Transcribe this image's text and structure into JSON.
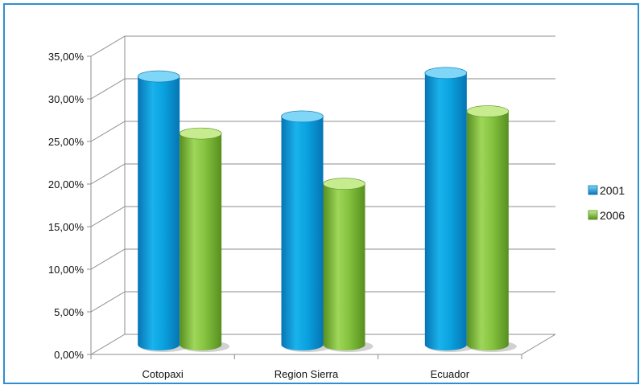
{
  "chart_data": {
    "type": "bar",
    "categories": [
      "Cotopaxi",
      "Region Sierra",
      "Ecuador"
    ],
    "series": [
      {
        "name": "2001",
        "values": [
          31.5,
          26.8,
          31.9
        ]
      },
      {
        "name": "2006",
        "values": [
          24.8,
          18.9,
          27.4
        ]
      }
    ],
    "yticks": [
      "0,00%",
      "5,00%",
      "10,00%",
      "15,00%",
      "20,00%",
      "25,00%",
      "30,00%",
      "35,00%"
    ],
    "ylim": [
      0,
      35
    ],
    "grid": true,
    "legend_position": "right",
    "colors": {
      "series_2001": "#0aa3e0",
      "series_2001_dark": "#0675b4",
      "series_2001_light": "#7fd6f7",
      "series_2006": "#86c440",
      "series_2006_dark": "#578f1f",
      "series_2006_light": "#c7ec8f",
      "grid": "#8c8c8c",
      "frame": "#2e8fd0"
    }
  }
}
